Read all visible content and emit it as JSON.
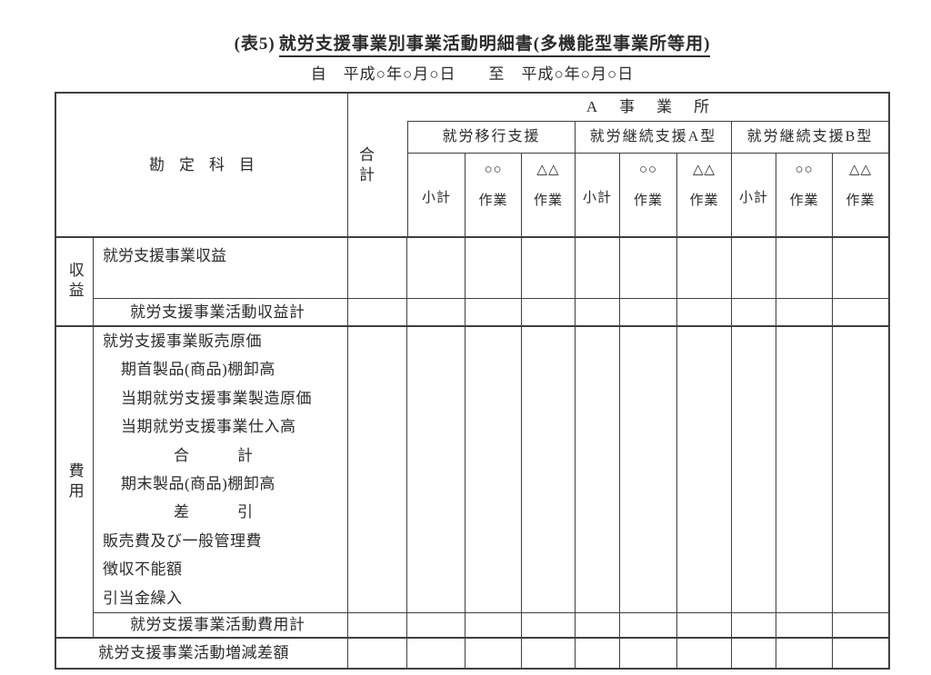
{
  "title": {
    "prefix": "(表5)",
    "main": "就労支援事業別事業活動明細書(多機能型事業所等用)"
  },
  "period": "自　平成○年○月○日　　至　平成○年○月○日",
  "table": {
    "account_column_header": "勘定科目",
    "total_column_header": "合計",
    "office_header": "A事業所",
    "service_groups": [
      "就労移行支援",
      "就労継続支援A型",
      "就労継続支援B型"
    ],
    "subcolumns": {
      "subtotal": "小計",
      "work_a": {
        "line1": "○○",
        "line2": "作業"
      },
      "work_b": {
        "line1": "△△",
        "line2": "作業"
      }
    },
    "sections": {
      "revenue": {
        "side_label": "収益",
        "row1": "就労支援事業収益",
        "total_row": "就労支援事業活動収益計"
      },
      "expense": {
        "side_label": "費用",
        "lines": [
          "就労支援事業販売原価",
          "期首製品(商品)棚卸高",
          "当期就労支援事業製造原価",
          "当期就労支援事業仕入高",
          "合　　　計",
          "期末製品(商品)棚卸高",
          "差　　　引",
          "販売費及び一般管理費",
          "徴収不能額",
          "引当金繰入"
        ],
        "total_row": "就労支援事業活動費用計"
      },
      "net": {
        "label": "就労支援事業活動増減差額"
      }
    }
  }
}
